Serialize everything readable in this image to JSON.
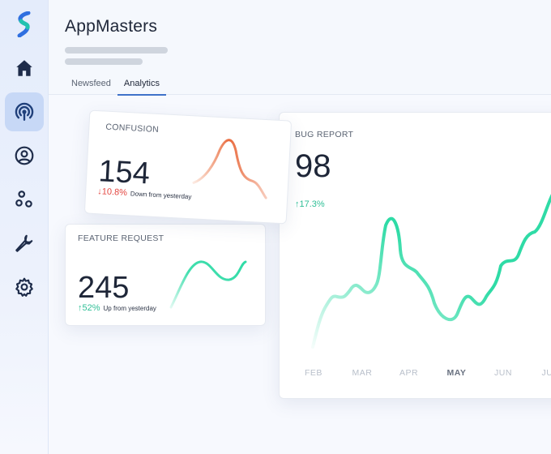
{
  "app": {
    "title": "AppMasters"
  },
  "sidebar": {
    "items": [
      {
        "name": "home",
        "icon": "home-icon"
      },
      {
        "name": "broadcast",
        "icon": "broadcast-icon",
        "active": true
      },
      {
        "name": "profile",
        "icon": "user-circle-icon"
      },
      {
        "name": "integrations",
        "icon": "nodes-icon"
      },
      {
        "name": "tools",
        "icon": "wrench-icon"
      },
      {
        "name": "settings",
        "icon": "gear-icon"
      }
    ],
    "accent": "#1f6bd8",
    "logo_colors": [
      "#2f6fe0",
      "#22c3b0"
    ]
  },
  "tabs": [
    {
      "label": "Newsfeed",
      "active": false
    },
    {
      "label": "Analytics",
      "active": true
    }
  ],
  "cards": {
    "confusion": {
      "label": "CONFUSION",
      "value": "154",
      "trend_arrow": "↓",
      "trend_pct": "10.8%",
      "trend_desc": "Down from yesterday",
      "trend_color": "#e3453f"
    },
    "feature": {
      "label": "FEATURE REQUEST",
      "value": "245",
      "trend_arrow": "↑",
      "trend_pct": "52%",
      "trend_desc": "Up from yesterday",
      "trend_color": "#2fbf96"
    },
    "bug": {
      "label": "BUG REPORT",
      "value": "98",
      "trend_arrow": "↑",
      "trend_pct": "17.3%",
      "trend_color": "#2fbf96"
    }
  },
  "chart_data": {
    "type": "line",
    "categories": [
      "FEB",
      "MAR",
      "APR",
      "MAY",
      "JUN",
      "JUL"
    ],
    "active_category": "MAY",
    "series_color": "#2fdba6",
    "grid": false
  }
}
